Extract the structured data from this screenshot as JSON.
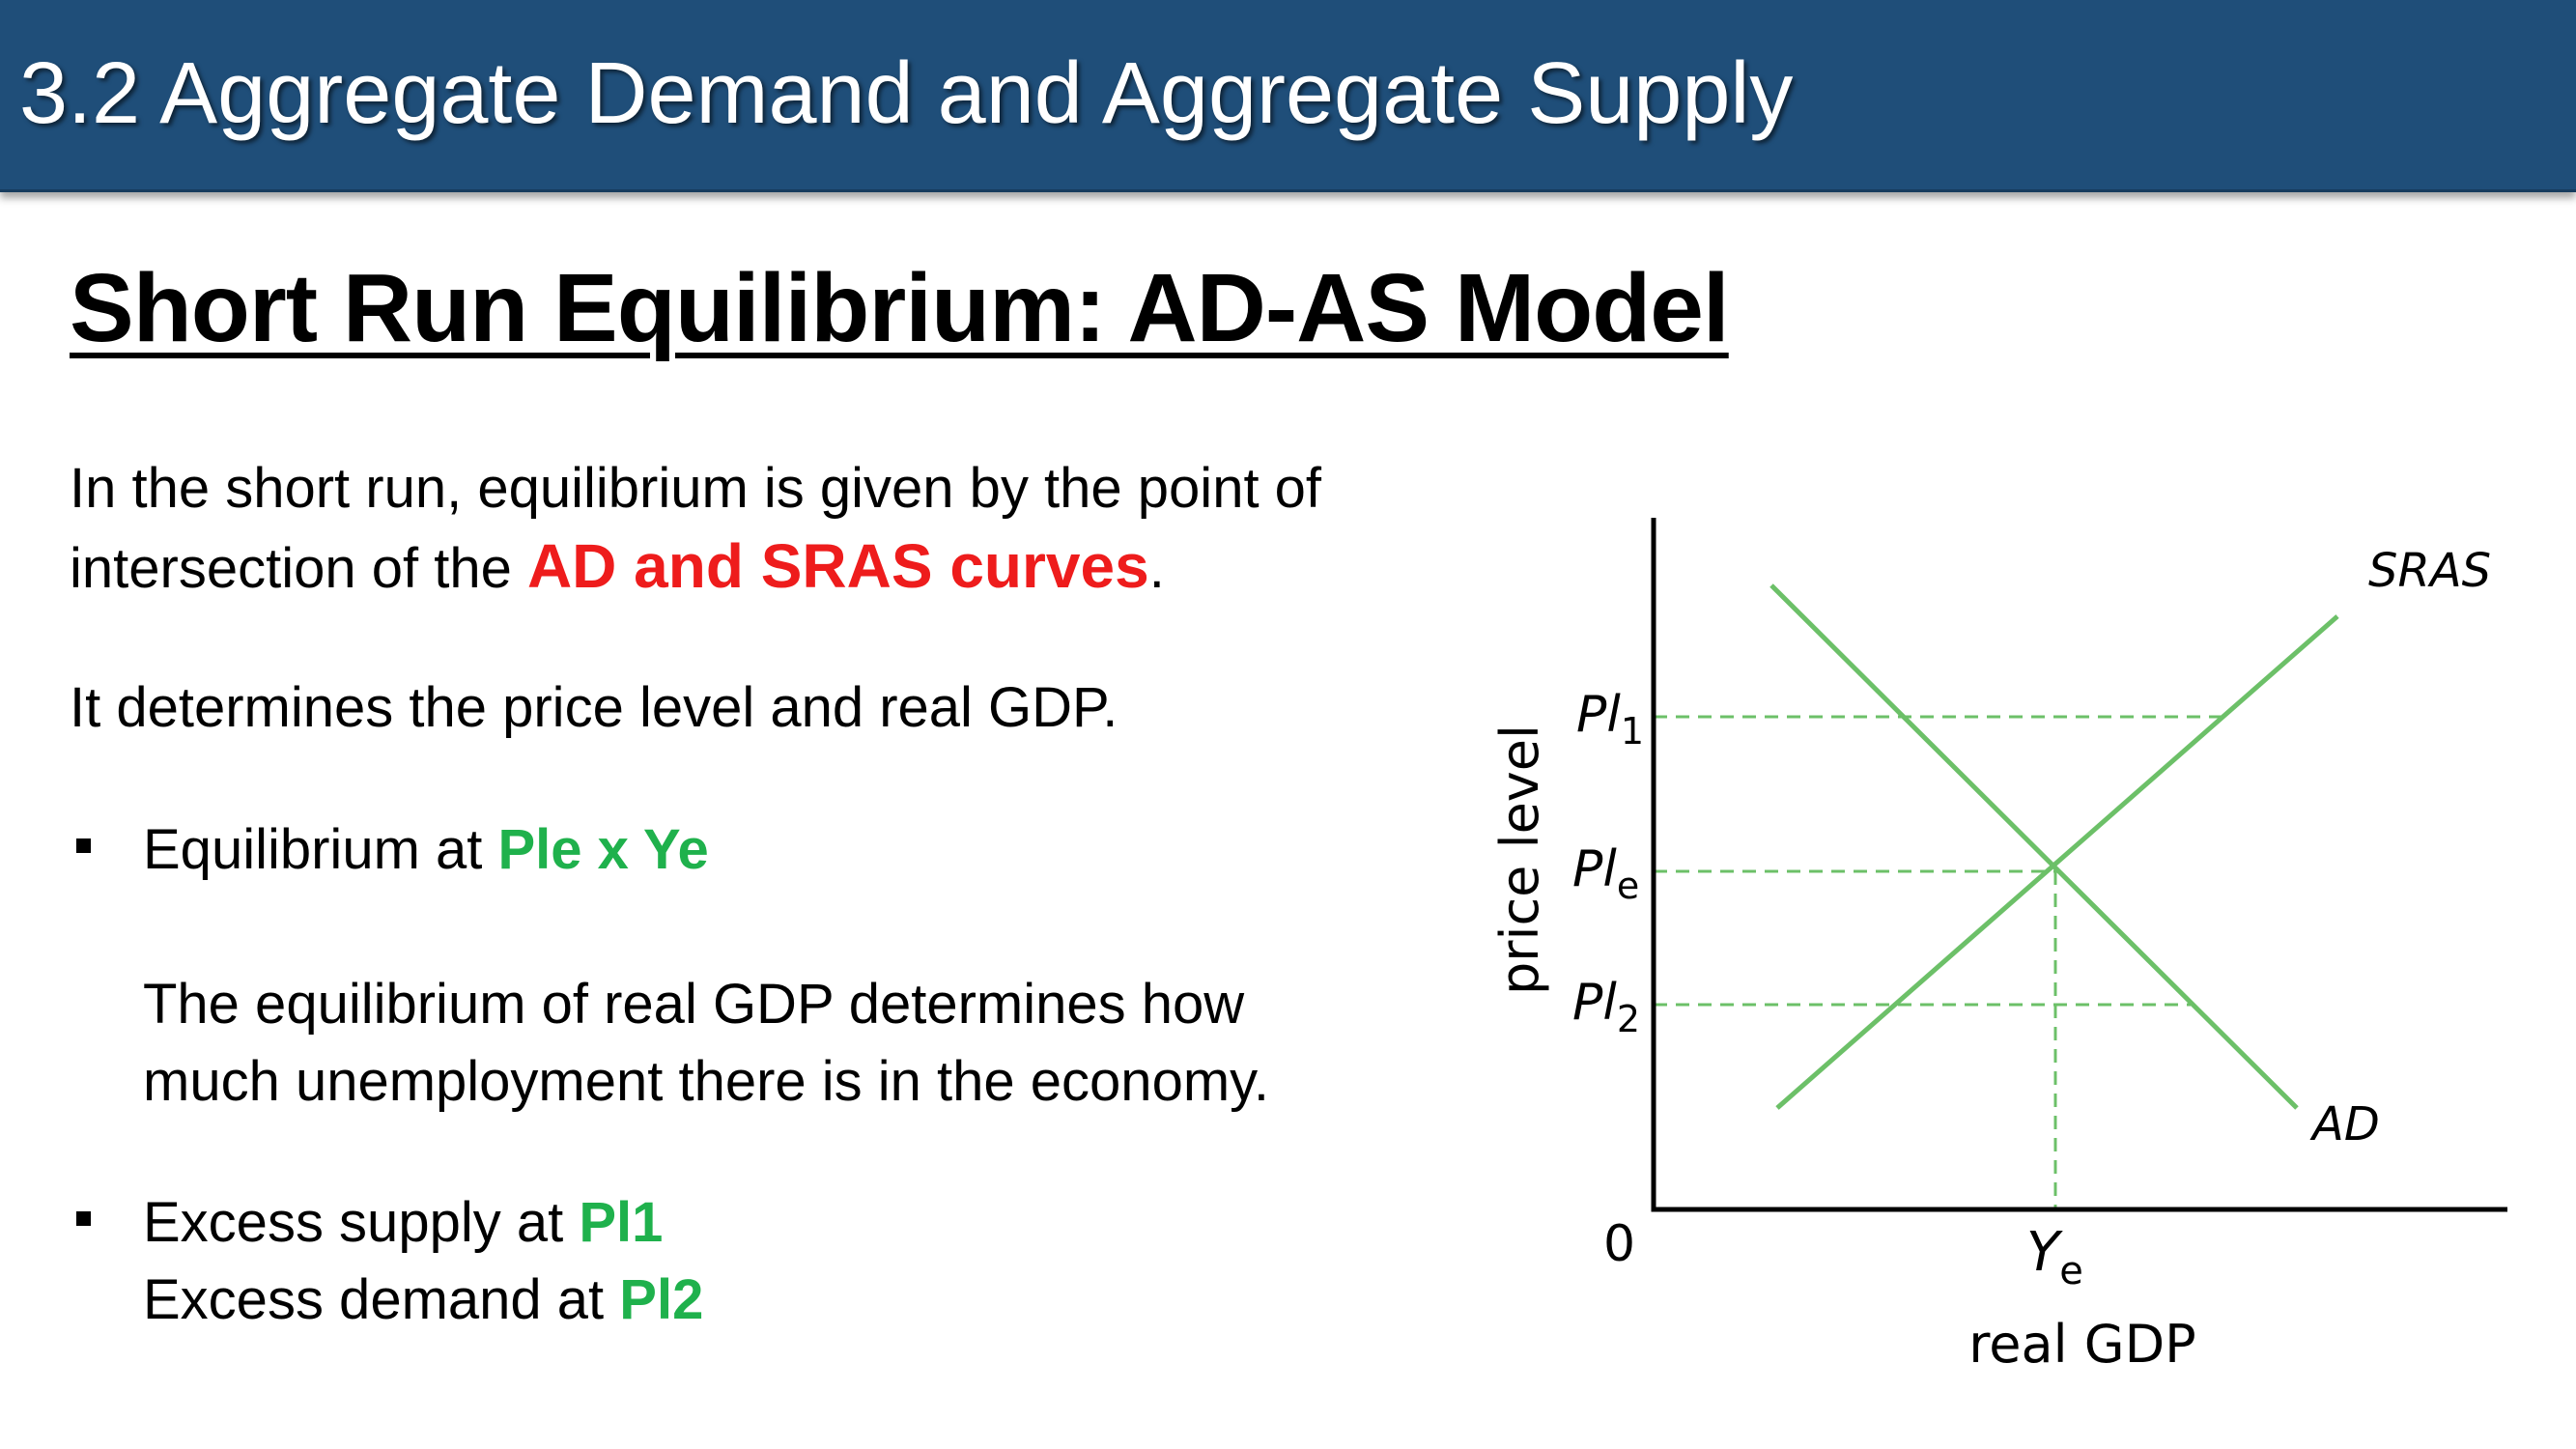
{
  "header": {
    "title": "3.2 Aggregate Demand and Aggregate Supply"
  },
  "slide": {
    "subtitle": "Short Run Equilibrium: AD-AS Model",
    "para1": {
      "line1": "In the short run, equilibrium is given by the point of",
      "line2_prefix": "intersection of the ",
      "line2_highlight": "AD and SRAS curves",
      "line2_suffix": "."
    },
    "para2": "It determines the price level and real GDP.",
    "bullet1": {
      "prefix": "Equilibrium at ",
      "highlight": "Ple x Ye",
      "sub_line1": "The equilibrium of real GDP determines how",
      "sub_line2": "much unemployment there is in the economy."
    },
    "bullet2": {
      "line1_prefix": "Excess supply at ",
      "line1_highlight": "Pl1",
      "line2_prefix": "Excess demand at ",
      "line2_highlight": "Pl2"
    }
  },
  "diagram": {
    "y_axis_label": "price level",
    "x_axis_label": "real GDP",
    "origin_label": "0",
    "sras_label": "SRAS",
    "ad_label": "AD",
    "pl1": {
      "base": "Pl",
      "sub": "1"
    },
    "ple": {
      "base": "Pl",
      "sub": "e"
    },
    "pl2": {
      "base": "Pl",
      "sub": "2"
    },
    "ye": {
      "base": "Y",
      "sub": "e"
    },
    "colors": {
      "curves": "#6cc068",
      "guides": "#6cc068",
      "axes": "#000000"
    }
  }
}
